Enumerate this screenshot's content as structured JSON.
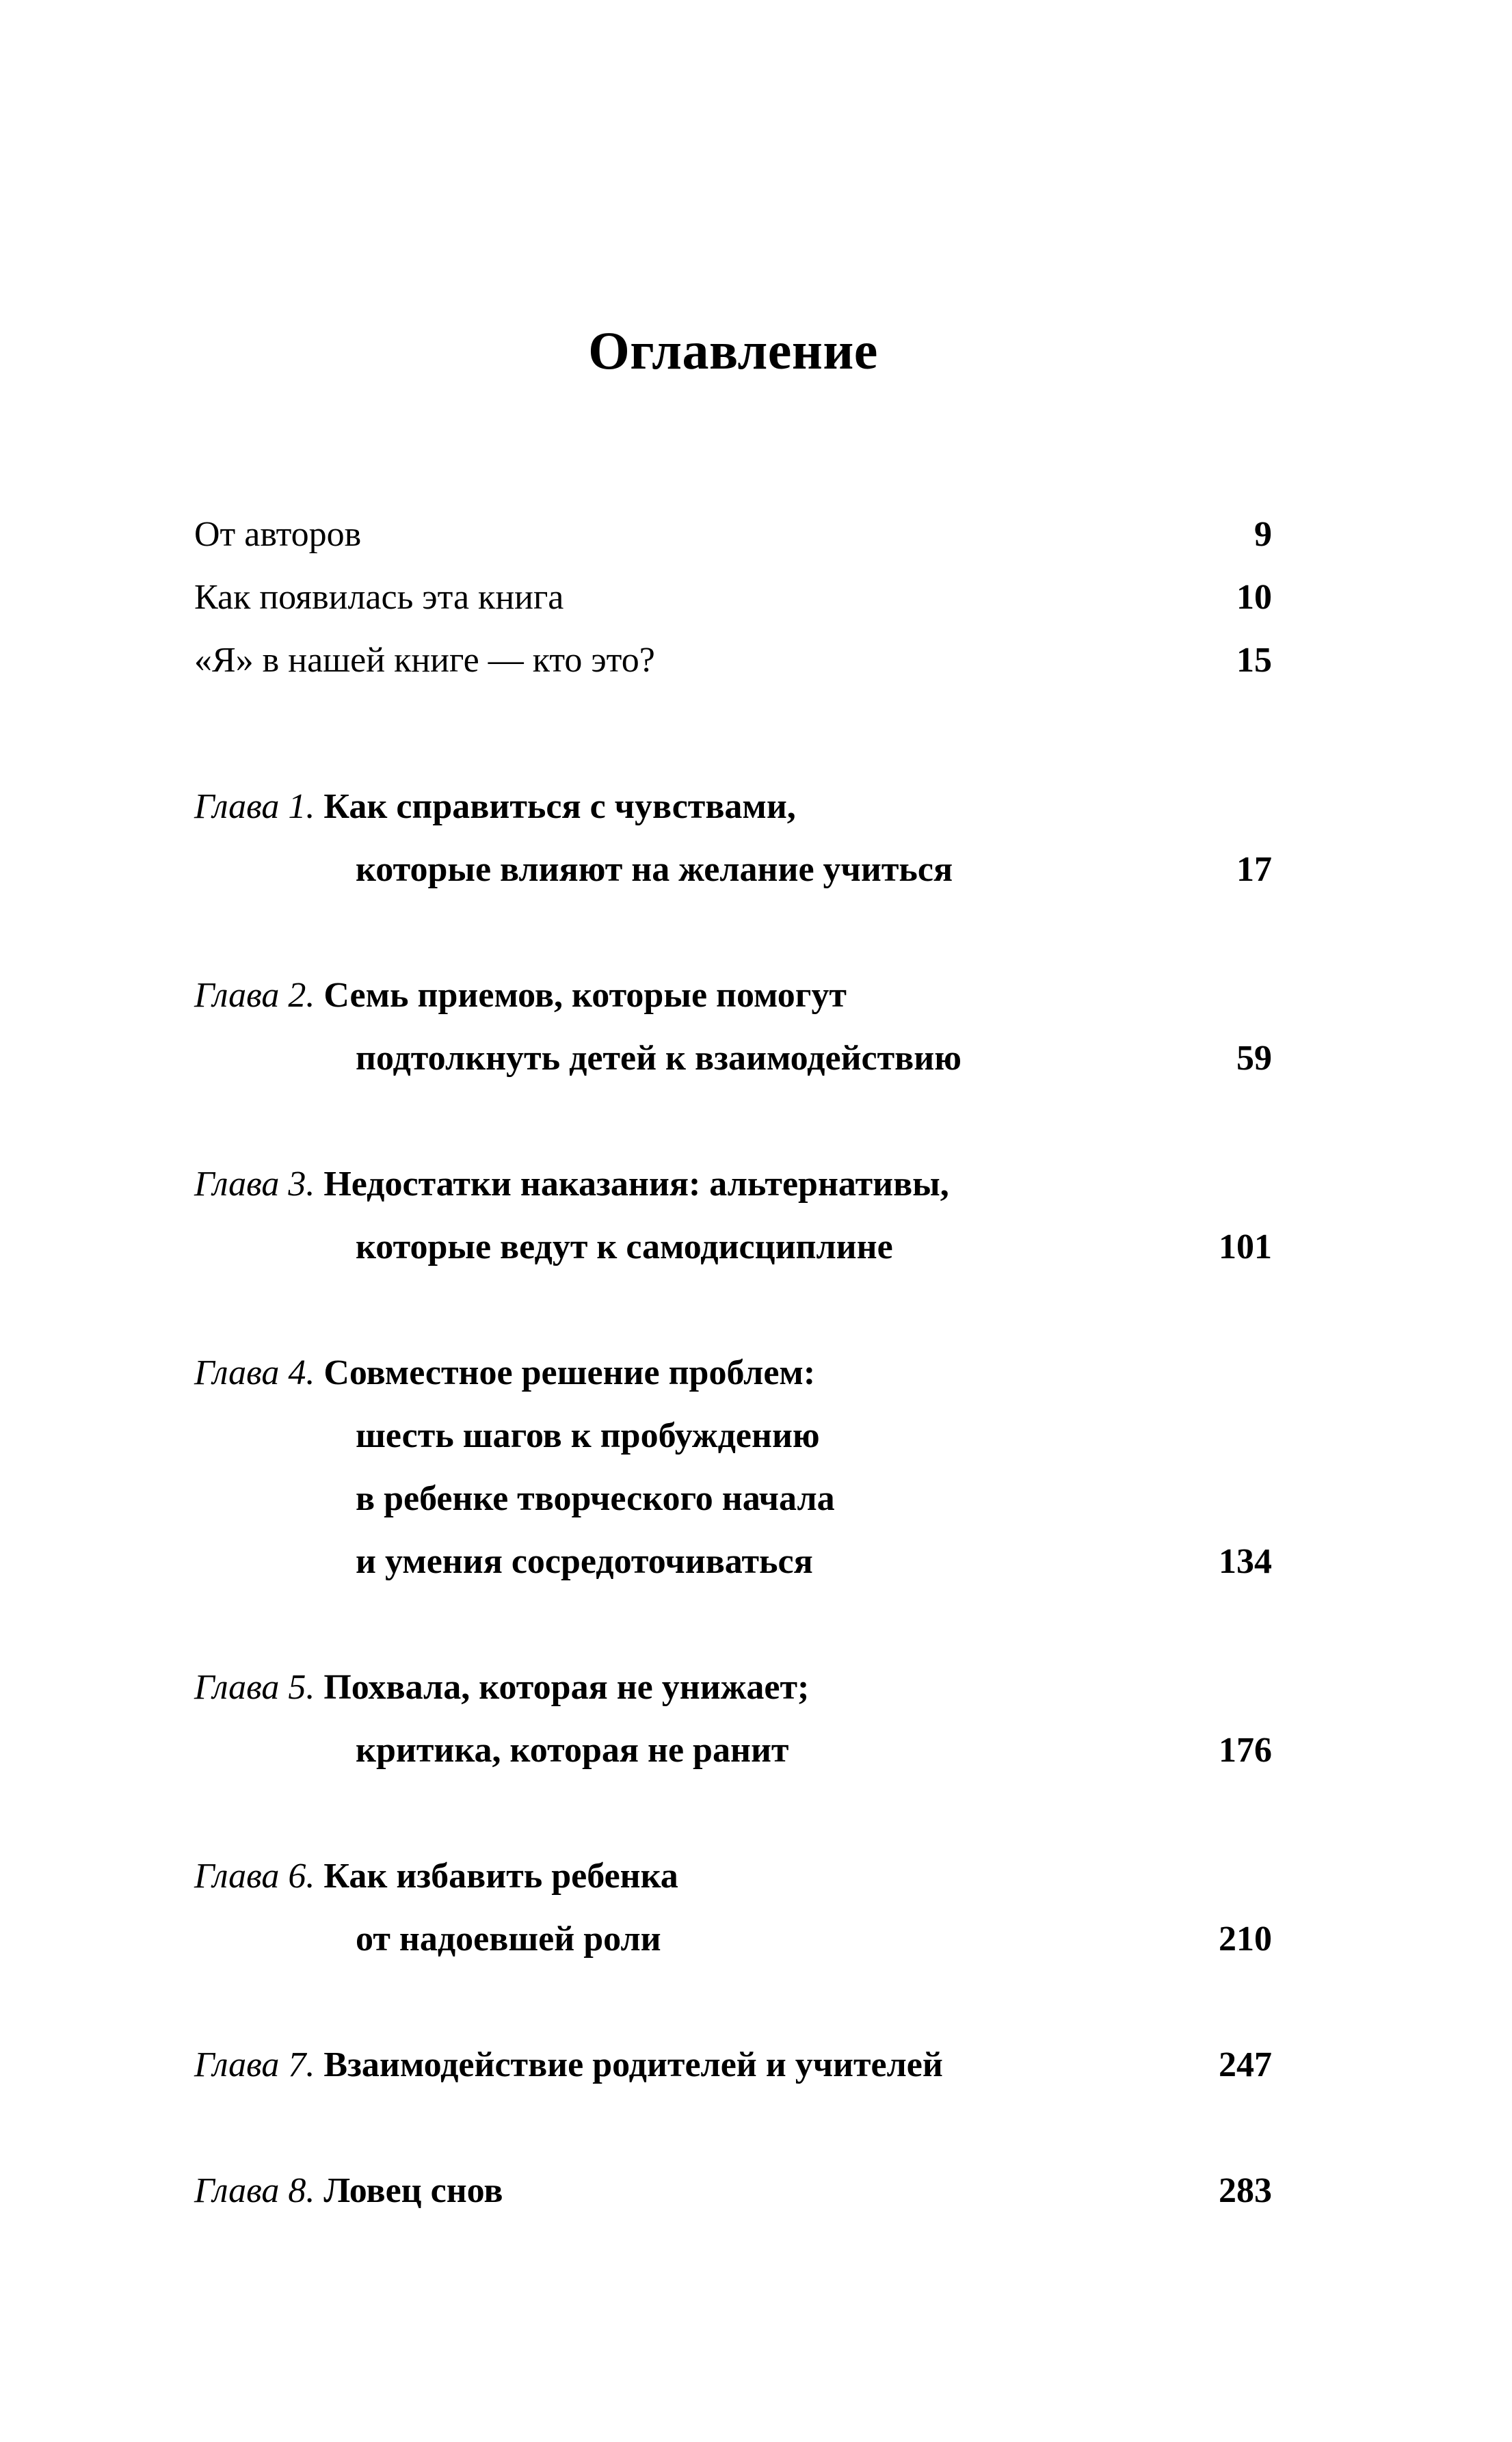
{
  "page": {
    "title": "Оглавление"
  },
  "colors": {
    "background": "#ffffff",
    "text": "#000000"
  },
  "front_matter": [
    {
      "label": "От авторов",
      "page": "9"
    },
    {
      "label": "Как появилась эта книга",
      "page": "10"
    },
    {
      "label": "«Я» в нашей книге — кто это?",
      "page": "15"
    }
  ],
  "chapters": [
    {
      "label": "Глава 1.",
      "title_lines": [
        "Как справиться с чувствами,",
        "которые влияют на желание учиться"
      ],
      "page": "17"
    },
    {
      "label": "Глава 2.",
      "title_lines": [
        "Семь приемов, которые помогут",
        "подтолкнуть детей к взаимодействию"
      ],
      "page": "59"
    },
    {
      "label": "Глава 3.",
      "title_lines": [
        "Недостатки наказания: альтернативы,",
        "которые ведут к самодисциплине"
      ],
      "page": "101"
    },
    {
      "label": "Глава 4.",
      "title_lines": [
        "Совместное решение проблем:",
        "шесть шагов к пробуждению",
        "в ребенке творческого начала",
        "и умения сосредоточиваться"
      ],
      "page": "134"
    },
    {
      "label": "Глава 5.",
      "title_lines": [
        "Похвала, которая не унижает;",
        "критика, которая не ранит"
      ],
      "page": "176"
    },
    {
      "label": "Глава 6.",
      "title_lines": [
        "Как избавить ребенка",
        "от надоевшей роли"
      ],
      "page": "210"
    },
    {
      "label": "Глава 7.",
      "title_lines": [
        "Взаимодействие родителей и учителей"
      ],
      "page": "247"
    },
    {
      "label": "Глава 8.",
      "title_lines": [
        "Ловец снов"
      ],
      "page": "283"
    }
  ]
}
